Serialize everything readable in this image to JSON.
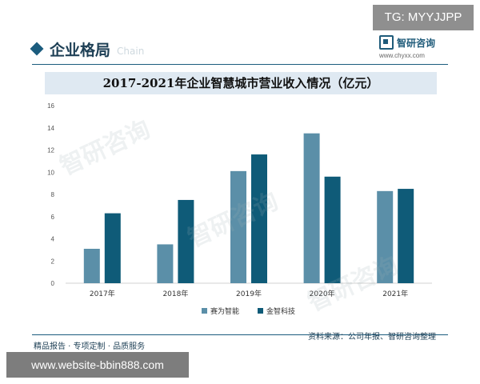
{
  "top_badge": "TG: MYYJJPP",
  "header": {
    "section_title": "企业格局",
    "section_title_en": "Chain",
    "brand_name": "智研咨询",
    "brand_url": "www.chyxx.com"
  },
  "watermark_text": "智研咨询",
  "footer": {
    "left_text": "精品报告 · 专项定制 · 品质服务",
    "right_text": "资料来源：公司年报、智研咨询整理"
  },
  "website_bar": "www.website-bbin888.com",
  "colors": {
    "series_1": "#5b8fa8",
    "series_2": "#0f5b78",
    "title_bg": "#dfe9f2",
    "accent": "#1b5c7e"
  },
  "chart_data": {
    "type": "bar",
    "title": "2017-2021年企业智慧城市营业收入情况（亿元）",
    "categories": [
      "2017年",
      "2018年",
      "2019年",
      "2020年",
      "2021年"
    ],
    "series": [
      {
        "name": "赛为智能",
        "values": [
          3.1,
          3.5,
          10.1,
          13.5,
          8.3
        ]
      },
      {
        "name": "金智科技",
        "values": [
          6.3,
          7.5,
          11.6,
          9.6,
          8.5
        ]
      }
    ],
    "ylim": [
      0,
      16
    ],
    "yticks": [
      0,
      2,
      4,
      6,
      8,
      10,
      12,
      14,
      16
    ],
    "grid": false,
    "legend_position": "bottom"
  }
}
